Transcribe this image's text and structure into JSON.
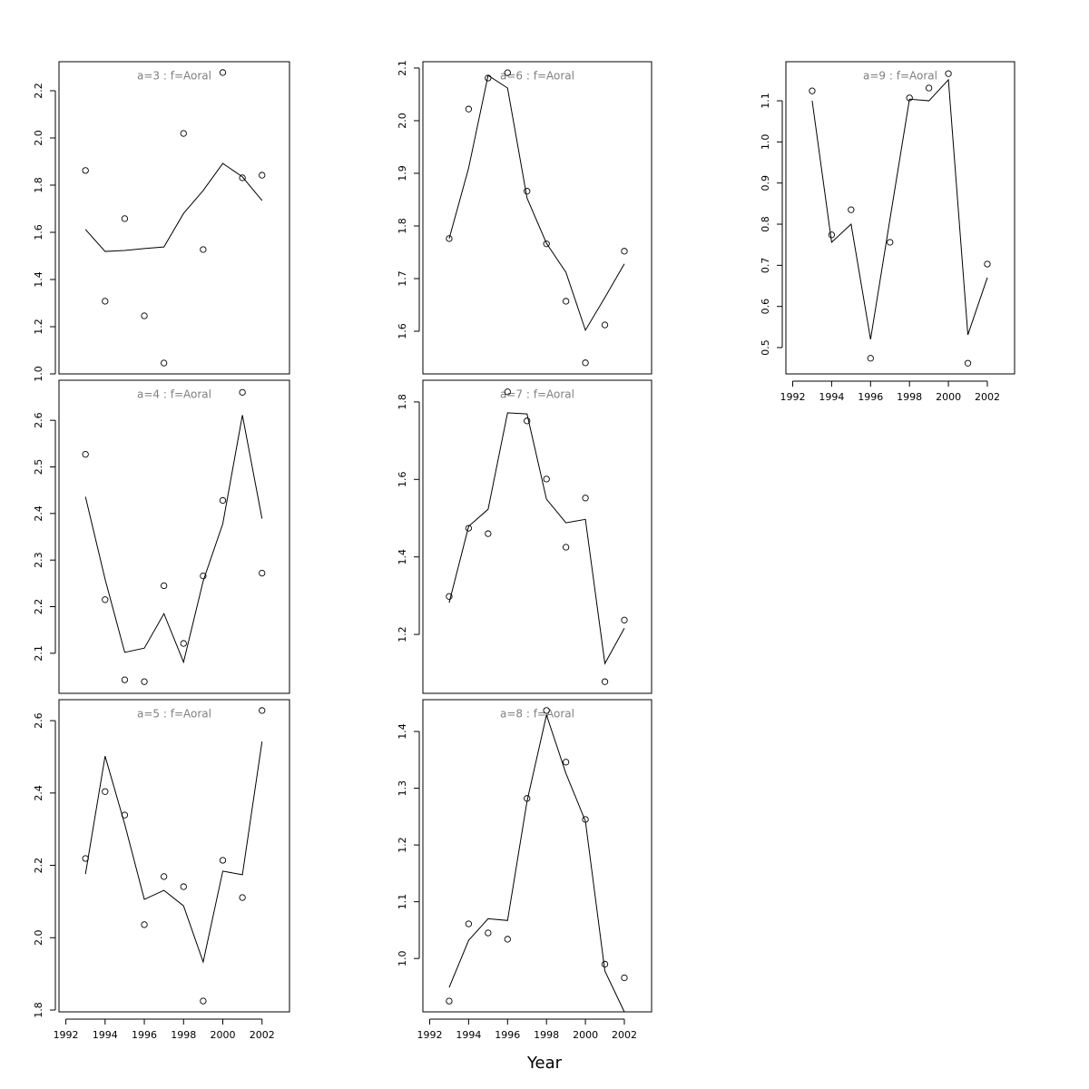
{
  "chart_data": [
    {
      "type": "line",
      "title": "a=3  :  f=Aoral",
      "title_color": "#808080",
      "x": [
        1993,
        1994,
        1995,
        1996,
        1997,
        1998,
        1999,
        2000,
        2001,
        2002
      ],
      "series": [
        {
          "color": "#000000",
          "marker": "circle",
          "values": [
            1.862,
            1.308,
            1.658,
            1.246,
            1.046,
            2.019,
            1.527,
            2.277,
            1.831,
            1.842
          ]
        },
        {
          "color": "#000000",
          "line": true,
          "values": [
            1.612,
            1.519,
            1.523,
            1.531,
            1.538,
            1.68,
            1.777,
            1.892,
            1.835,
            1.735
          ]
        }
      ],
      "xlim": [
        1991.65,
        2003.4
      ],
      "ylim": [
        1.0,
        2.323
      ],
      "yticks": [
        {
          "value": 1,
          "label": "1.0"
        },
        1.2,
        1.4,
        1.6,
        1.8,
        {
          "value": 2,
          "label": "2.0"
        },
        2.2
      ]
    },
    {
      "type": "line",
      "title": "a=4  :  f=Aoral",
      "title_color": "#808080",
      "x": [
        1993,
        1994,
        1995,
        1996,
        1997,
        1998,
        1999,
        2000,
        2001,
        2002
      ],
      "series": [
        {
          "color": "#000000",
          "marker": "circle",
          "values": [
            2.527,
            2.215,
            2.043,
            2.039,
            2.245,
            2.121,
            2.266,
            2.428,
            2.66,
            2.272
          ]
        },
        {
          "color": "#000000",
          "line": true,
          "values": [
            2.436,
            2.259,
            2.102,
            2.111,
            2.185,
            2.081,
            2.255,
            2.378,
            2.611,
            2.389
          ]
        }
      ],
      "xlim": [
        1991.65,
        2003.4
      ],
      "ylim": [
        2.014,
        2.686
      ],
      "yticks": [
        2.1,
        2.2,
        2.3,
        2.4,
        2.5,
        2.6
      ]
    },
    {
      "type": "line",
      "title": "a=5  :  f=Aoral",
      "title_color": "#808080",
      "x": [
        1993,
        1994,
        1995,
        1996,
        1997,
        1998,
        1999,
        2000,
        2001,
        2002
      ],
      "series": [
        {
          "color": "#000000",
          "marker": "circle",
          "values": [
            2.219,
            2.404,
            2.339,
            2.036,
            2.169,
            2.141,
            1.825,
            2.214,
            2.111,
            2.628
          ]
        },
        {
          "color": "#000000",
          "line": true,
          "values": [
            2.176,
            2.502,
            2.314,
            2.106,
            2.131,
            2.088,
            1.933,
            2.184,
            2.174,
            2.542
          ]
        }
      ],
      "xlim": [
        1991.65,
        2003.4
      ],
      "ylim": [
        1.795,
        2.658
      ],
      "yticks": [
        1.8,
        {
          "value": 2,
          "label": "2.0"
        },
        2.2,
        2.4,
        2.6
      ],
      "xticks": [
        1992,
        1994,
        1996,
        1998,
        2000,
        2002
      ]
    },
    {
      "type": "line",
      "title": "a=6  :  f=Aoral",
      "title_color": "#808080",
      "x": [
        1993,
        1994,
        1995,
        1996,
        1997,
        1998,
        1999,
        2000,
        2001,
        2002
      ],
      "series": [
        {
          "color": "#000000",
          "marker": "circle",
          "values": [
            1.776,
            2.022,
            2.081,
            2.091,
            1.866,
            1.766,
            1.657,
            1.54,
            1.612,
            1.752
          ]
        },
        {
          "color": "#000000",
          "line": true,
          "values": [
            1.776,
            1.91,
            2.086,
            2.062,
            1.853,
            1.767,
            1.712,
            1.602,
            1.664,
            1.728
          ]
        }
      ],
      "xlim": [
        1991.65,
        2003.4
      ],
      "ylim": [
        1.519,
        2.112
      ],
      "yticks": [
        1.6,
        1.7,
        1.8,
        1.9,
        {
          "value": 2,
          "label": "2.0"
        },
        2.1
      ]
    },
    {
      "type": "line",
      "title": "a=7  :  f=Aoral",
      "title_color": "#808080",
      "x": [
        1993,
        1994,
        1995,
        1996,
        1997,
        1998,
        1999,
        2000,
        2001,
        2002
      ],
      "series": [
        {
          "color": "#000000",
          "marker": "circle",
          "values": [
            1.298,
            1.474,
            1.46,
            1.826,
            1.751,
            1.601,
            1.425,
            1.552,
            1.078,
            1.237
          ]
        },
        {
          "color": "#000000",
          "line": true,
          "values": [
            1.282,
            1.479,
            1.523,
            1.772,
            1.769,
            1.549,
            1.488,
            1.497,
            1.125,
            1.216
          ]
        }
      ],
      "xlim": [
        1991.65,
        2003.4
      ],
      "ylim": [
        1.048,
        1.856
      ],
      "yticks": [
        1.2,
        1.4,
        1.6,
        1.8
      ]
    },
    {
      "type": "line",
      "title": "a=8  :  f=Aoral",
      "title_color": "#808080",
      "x": [
        1993,
        1994,
        1995,
        1996,
        1997,
        1998,
        1999,
        2000,
        2001,
        2002
      ],
      "series": [
        {
          "color": "#000000",
          "marker": "circle",
          "values": [
            0.925,
            1.061,
            1.045,
            1.034,
            1.282,
            1.437,
            1.346,
            1.245,
            0.99,
            0.966
          ]
        },
        {
          "color": "#000000",
          "line": true,
          "values": [
            0.949,
            1.032,
            1.07,
            1.067,
            1.277,
            1.429,
            1.326,
            1.242,
            0.978,
            0.906
          ]
        }
      ],
      "xlim": [
        1991.65,
        2003.4
      ],
      "ylim": [
        0.906,
        1.456
      ],
      "yticks": [
        {
          "value": 1,
          "label": "1.0"
        },
        1.1,
        1.2,
        1.3,
        1.4
      ],
      "xticks": [
        1992,
        1994,
        1996,
        1998,
        2000,
        2002
      ]
    },
    {
      "type": "line",
      "title": "a=9  :  f=Aoral",
      "title_color": "#808080",
      "x": [
        1993,
        1994,
        1995,
        1996,
        1997,
        1998,
        1999,
        2000,
        2001,
        2002
      ],
      "series": [
        {
          "color": "#000000",
          "marker": "circle",
          "values": [
            1.124,
            0.774,
            0.835,
            0.474,
            0.756,
            1.107,
            1.131,
            1.166,
            0.462,
            0.703
          ]
        },
        {
          "color": "#000000",
          "line": true,
          "values": [
            1.1,
            0.756,
            0.8,
            0.52,
            0.813,
            1.104,
            1.1,
            1.151,
            0.531,
            0.67
          ]
        }
      ],
      "xlim": [
        1991.65,
        2003.4
      ],
      "ylim": [
        0.436,
        1.195
      ],
      "yticks": [
        0.5,
        0.6,
        0.7,
        0.8,
        0.9,
        {
          "value": 1,
          "label": "1.0"
        },
        1.1
      ],
      "xticks": [
        1992,
        1994,
        1996,
        1998,
        2000,
        2002
      ]
    }
  ],
  "xlabel": "Year"
}
